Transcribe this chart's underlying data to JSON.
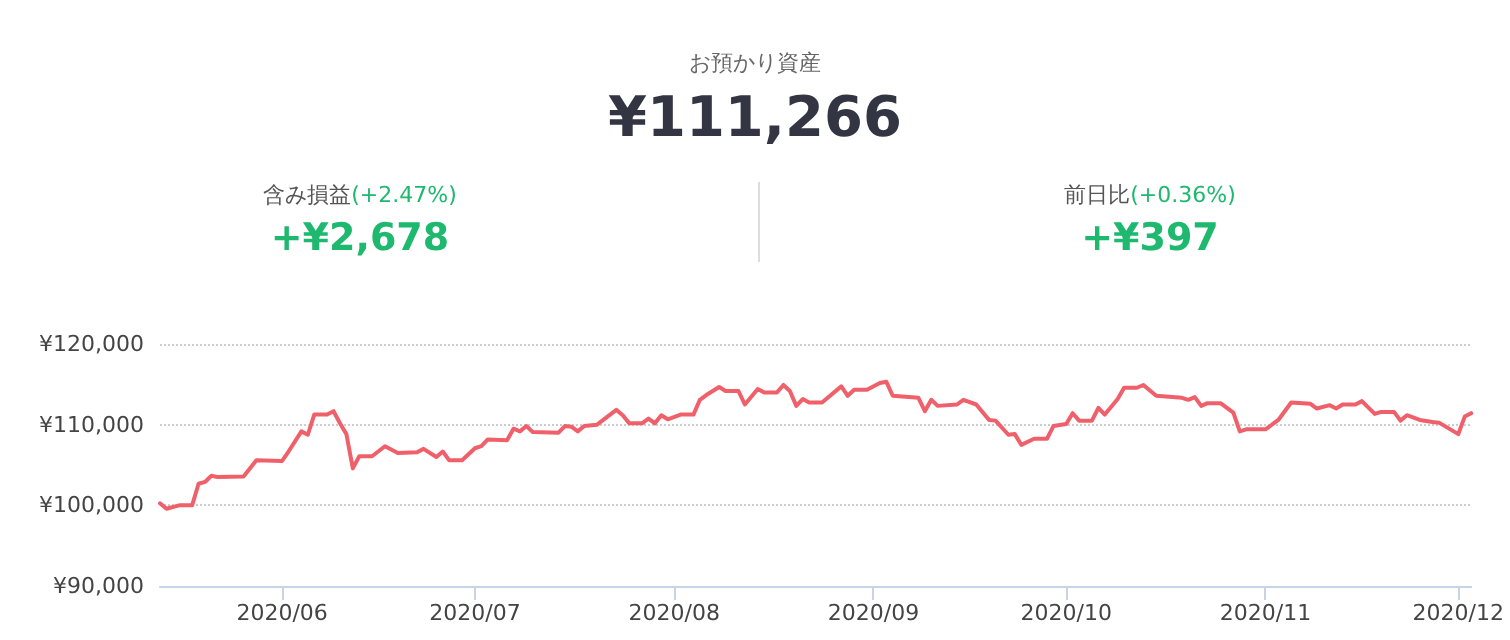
{
  "chart_data": {
    "type": "line",
    "title": "お預かり資産",
    "subtitle": "¥111,266",
    "annotations": [
      "含み損益",
      "(+2.47%)",
      "+¥2,678",
      "前日比",
      "(+0.36%)",
      "+¥397"
    ],
    "x": [
      "2020-05-13",
      "2020-05-14",
      "2020-05-16",
      "2020-05-18",
      "2020-05-19",
      "2020-05-20",
      "2020-05-21",
      "2020-05-22",
      "2020-05-26",
      "2020-05-28",
      "2020-06-01",
      "2020-06-02",
      "2020-06-04",
      "2020-06-05",
      "2020-06-06",
      "2020-06-08",
      "2020-06-09",
      "2020-06-10",
      "2020-06-11",
      "2020-06-12",
      "2020-06-13",
      "2020-06-15",
      "2020-06-17",
      "2020-06-19",
      "2020-06-22",
      "2020-06-23",
      "2020-06-25",
      "2020-06-26",
      "2020-06-27",
      "2020-06-29",
      "2020-07-01",
      "2020-07-02",
      "2020-07-03",
      "2020-07-06",
      "2020-07-07",
      "2020-07-08",
      "2020-07-09",
      "2020-07-10",
      "2020-07-14",
      "2020-07-15",
      "2020-07-16",
      "2020-07-17",
      "2020-07-18",
      "2020-07-20",
      "2020-07-23",
      "2020-07-24",
      "2020-07-25",
      "2020-07-27",
      "2020-07-28",
      "2020-07-29",
      "2020-07-30",
      "2020-07-31",
      "2020-08-02",
      "2020-08-04",
      "2020-08-05",
      "2020-08-06",
      "2020-08-08",
      "2020-08-09",
      "2020-08-11",
      "2020-08-12",
      "2020-08-14",
      "2020-08-15",
      "2020-08-17",
      "2020-08-18",
      "2020-08-19",
      "2020-08-20",
      "2020-08-21",
      "2020-08-22",
      "2020-08-24",
      "2020-08-27",
      "2020-08-28",
      "2020-08-29",
      "2020-08-31",
      "2020-09-02",
      "2020-09-03",
      "2020-09-04",
      "2020-09-08",
      "2020-09-09",
      "2020-09-10",
      "2020-09-11",
      "2020-09-14",
      "2020-09-15",
      "2020-09-17",
      "2020-09-19",
      "2020-09-20",
      "2020-09-22",
      "2020-09-23",
      "2020-09-24",
      "2020-09-26",
      "2020-09-28",
      "2020-09-29",
      "2020-10-01",
      "2020-10-02",
      "2020-10-03",
      "2020-10-05",
      "2020-10-06",
      "2020-10-07",
      "2020-10-09",
      "2020-10-10",
      "2020-10-12",
      "2020-10-13",
      "2020-10-15",
      "2020-10-19",
      "2020-10-20",
      "2020-10-21",
      "2020-10-22",
      "2020-10-23",
      "2020-10-25",
      "2020-10-27",
      "2020-10-28",
      "2020-10-29",
      "2020-11-01",
      "2020-11-03",
      "2020-11-05",
      "2020-11-08",
      "2020-11-09",
      "2020-11-11",
      "2020-11-12",
      "2020-11-13",
      "2020-11-15",
      "2020-11-16",
      "2020-11-18",
      "2020-11-19",
      "2020-11-21",
      "2020-11-22",
      "2020-11-23",
      "2020-11-25",
      "2020-11-27",
      "2020-11-28",
      "2020-12-01",
      "2020-12-02",
      "2020-12-03"
    ],
    "series": [
      {
        "color": "#f0606a",
        "values": [
          100250,
          99580,
          100000,
          100000,
          102670,
          102900,
          103670,
          103500,
          103580,
          105580,
          105500,
          106670,
          109170,
          108750,
          111250,
          111250,
          111670,
          110170,
          108830,
          104580,
          106080,
          106080,
          107330,
          106500,
          106580,
          107000,
          106000,
          106670,
          105580,
          105580,
          107080,
          107330,
          108170,
          108080,
          109500,
          109170,
          109830,
          109080,
          109000,
          109830,
          109750,
          109170,
          109830,
          110000,
          111830,
          111170,
          110170,
          110170,
          110750,
          110170,
          111170,
          110670,
          111250,
          111250,
          113080,
          113670,
          114670,
          114170,
          114170,
          112500,
          114420,
          114000,
          114000,
          114920,
          114170,
          112330,
          113170,
          112750,
          112750,
          114750,
          113580,
          114330,
          114330,
          115170,
          115330,
          113580,
          113330,
          111670,
          113080,
          112330,
          112500,
          113080,
          112500,
          110580,
          110500,
          108750,
          108830,
          107500,
          108250,
          108250,
          109830,
          110080,
          111420,
          110500,
          110500,
          112080,
          111250,
          113170,
          114580,
          114580,
          114920,
          113580,
          113330,
          113080,
          113420,
          112330,
          112670,
          112670,
          111500,
          109170,
          109420,
          109420,
          110580,
          112750,
          112580,
          112000,
          112420,
          112000,
          112500,
          112500,
          112920,
          111330,
          111580,
          111580,
          110500,
          111170,
          110580,
          110330,
          110250,
          108830,
          111000,
          111420
        ]
      }
    ],
    "xlim": [
      "2020-05-13",
      "2020-12-03"
    ],
    "xticks": [
      {
        "value": "2020-06-01",
        "label": "2020/06"
      },
      {
        "value": "2020-07-01",
        "label": "2020/07"
      },
      {
        "value": "2020-08-01",
        "label": "2020/08"
      },
      {
        "value": "2020-09-01",
        "label": "2020/09"
      },
      {
        "value": "2020-10-01",
        "label": "2020/10"
      },
      {
        "value": "2020-11-01",
        "label": "2020/11"
      },
      {
        "value": "2020-12-01",
        "label": "2020/12"
      }
    ],
    "ylim": [
      90000,
      120000
    ],
    "yticks": [
      {
        "value": 90000,
        "label": "¥90,000"
      },
      {
        "value": 100000,
        "label": "¥100,000"
      },
      {
        "value": 110000,
        "label": "¥110,000"
      },
      {
        "value": 120000,
        "label": "¥120,000"
      }
    ],
    "grid": "y",
    "line_style": "solid"
  }
}
